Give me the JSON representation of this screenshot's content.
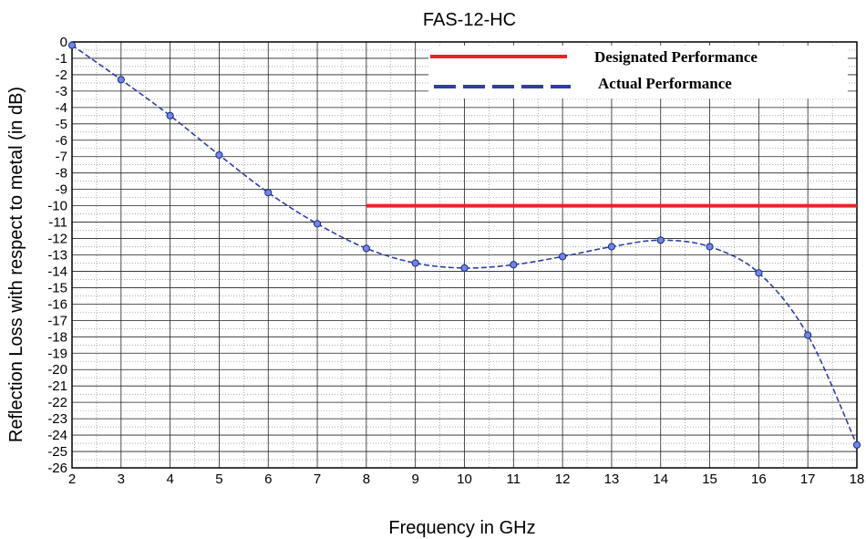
{
  "chart_data": {
    "type": "line",
    "title": "FAS-12-HC",
    "xlabel": "Frequency in GHz",
    "ylabel": "Reflection Loss with respect to metal (in dB)",
    "xlim": [
      2,
      18
    ],
    "ylim": [
      -26,
      0
    ],
    "x_ticks": [
      "2",
      "3",
      "4",
      "5",
      "6",
      "7",
      "8",
      "9",
      "10",
      "11",
      "12",
      "13",
      "14",
      "15",
      "16",
      "17",
      "18"
    ],
    "y_ticks": [
      "0",
      "-1",
      "-2",
      "-3",
      "-4",
      "-5",
      "-6",
      "-7",
      "-8",
      "-9",
      "-10",
      "-11",
      "-12",
      "-13",
      "-14",
      "-15",
      "-16",
      "-17",
      "-18",
      "-19",
      "-20",
      "-21",
      "-22",
      "-23",
      "-24",
      "-25",
      "-26"
    ],
    "grid": true,
    "legend_position": "top-right",
    "series": [
      {
        "name": "Designated Performance",
        "color": "#e8242a",
        "style": "solid",
        "x": [
          8,
          18
        ],
        "y": [
          -10,
          -10
        ]
      },
      {
        "name": "Actual Performance",
        "color": "#2f3ea6",
        "style": "dashed",
        "marker": "circle",
        "x": [
          2,
          3,
          4,
          5,
          6,
          7,
          8,
          9,
          10,
          11,
          12,
          13,
          14,
          15,
          16,
          17,
          18
        ],
        "y": [
          -0.2,
          -2.3,
          -4.5,
          -6.9,
          -9.2,
          -11.1,
          -12.6,
          -13.5,
          -13.8,
          -13.6,
          -13.1,
          -12.5,
          -12.1,
          -12.5,
          -14.1,
          -17.9,
          -24.6
        ]
      }
    ]
  }
}
